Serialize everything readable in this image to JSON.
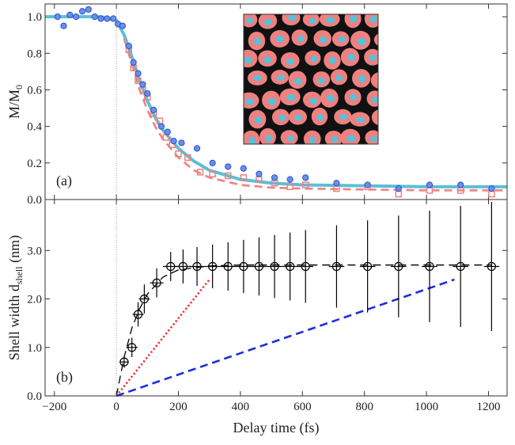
{
  "chart_data": [
    {
      "type": "line",
      "ylabel_main": "M/M",
      "ylabel_sub": "0",
      "panel_label": "(a)",
      "ylim": [
        0,
        1.07
      ],
      "yticks": [
        {
          "value": 0,
          "label": "0.0"
        },
        {
          "value": 0.2,
          "label": "0.2"
        },
        {
          "value": 0.4,
          "label": "0.4"
        },
        {
          "value": 0.6,
          "label": "0.6"
        },
        {
          "value": 0.8,
          "label": "0.8"
        },
        {
          "value": 1,
          "label": "1.0"
        }
      ],
      "series": [
        {
          "style": "solid",
          "color": "#5bbfd6",
          "x": [
            -230,
            -100,
            -50,
            0,
            25,
            50,
            75,
            100,
            125,
            150,
            200,
            250,
            300,
            400,
            500,
            600,
            800,
            1000,
            1260
          ],
          "values": [
            1,
            1,
            1,
            0.98,
            0.9,
            0.78,
            0.65,
            0.54,
            0.45,
            0.38,
            0.28,
            0.21,
            0.16,
            0.11,
            0.09,
            0.08,
            0.075,
            0.07,
            0.07
          ]
        },
        {
          "style": "dashed",
          "color": "#f08080",
          "x": [
            25,
            50,
            75,
            100,
            125,
            150,
            200,
            250,
            300,
            400,
            500,
            600,
            800,
            1000,
            1260
          ],
          "values": [
            0.88,
            0.74,
            0.6,
            0.49,
            0.4,
            0.33,
            0.23,
            0.16,
            0.12,
            0.08,
            0.065,
            0.06,
            0.055,
            0.05,
            0.05
          ]
        },
        {
          "style": "square",
          "color": "#f08080",
          "x": [
            40,
            55,
            70,
            85,
            100,
            120,
            140,
            160,
            180,
            200,
            230,
            270,
            310,
            360,
            410,
            460,
            510,
            560,
            610,
            710,
            810,
            910,
            1010,
            1110,
            1210
          ],
          "values": [
            0.82,
            0.72,
            0.65,
            0.6,
            0.56,
            0.47,
            0.43,
            0.34,
            0.3,
            0.25,
            0.23,
            0.15,
            0.14,
            0.13,
            0.12,
            0.11,
            0.09,
            0.07,
            0.08,
            0.06,
            0.07,
            0.03,
            0.05,
            0.05,
            0.03
          ]
        },
        {
          "style": "circle",
          "color": "#6a8fe8",
          "x": [
            -190,
            -170,
            -150,
            -130,
            -110,
            -90,
            -70,
            -50,
            -30,
            -10,
            5,
            20,
            40,
            55,
            70,
            85,
            100,
            120,
            145,
            165,
            185,
            210,
            260,
            310,
            360,
            410,
            460,
            510,
            560,
            610,
            710,
            810,
            910,
            1010,
            1110,
            1210
          ],
          "values": [
            1,
            0.95,
            1.01,
            1,
            1.03,
            1.04,
            1,
            0.99,
            0.99,
            0.99,
            0.96,
            0.95,
            0.84,
            0.75,
            0.69,
            0.63,
            0.58,
            0.49,
            0.4,
            0.37,
            0.32,
            0.31,
            0.28,
            0.2,
            0.18,
            0.17,
            0.14,
            0.12,
            0.11,
            0.12,
            0.09,
            0.08,
            0.06,
            0.08,
            0.08,
            0.06
          ]
        }
      ]
    },
    {
      "type": "line",
      "ylabel_main": "Shell width d",
      "ylabel_sub": "shell",
      "ylabel_unit": " (nm)",
      "panel_label": "(b)",
      "xlabel": "Delay time (fs)",
      "xlim": [
        -230,
        1260
      ],
      "xticks": [
        {
          "value": -200,
          "label": "−200"
        },
        0,
        200,
        400,
        600,
        800,
        1000,
        1200
      ],
      "ylim": [
        0,
        4.05
      ],
      "yticks": [
        {
          "value": 0,
          "label": "0.0"
        },
        {
          "value": 1,
          "label": "1.0"
        },
        {
          "value": 2,
          "label": "2.0"
        },
        {
          "value": 3,
          "label": "3.0"
        }
      ],
      "series": [
        {
          "style": "dashed",
          "color": "#000000",
          "x": [
            0,
            25,
            50,
            75,
            100,
            150,
            200,
            300,
            400,
            1210
          ],
          "values": [
            0,
            0.8,
            1.4,
            1.8,
            2.1,
            2.45,
            2.6,
            2.68,
            2.7,
            2.7
          ]
        },
        {
          "style": "dotted",
          "color": "#ee2222",
          "x": [
            0,
            300
          ],
          "values": [
            0,
            2.4
          ]
        },
        {
          "style": "dashed",
          "color": "#1a2ee0",
          "x": [
            0,
            1090
          ],
          "values": [
            0,
            2.4
          ]
        },
        {
          "style": "errorbar",
          "color": "#000000",
          "x": [
            25,
            50,
            70,
            90,
            130,
            175,
            215,
            260,
            310,
            360,
            410,
            460,
            510,
            560,
            610,
            710,
            810,
            910,
            1010,
            1110,
            1210
          ],
          "values": [
            0.7,
            1,
            1.68,
            2,
            2.33,
            2.67,
            2.67,
            2.67,
            2.67,
            2.67,
            2.67,
            2.67,
            2.67,
            2.67,
            2.67,
            2.67,
            2.67,
            2.67,
            2.67,
            2.67,
            2.67
          ],
          "xerr": [
            15,
            18,
            18,
            18,
            22,
            25,
            25,
            25,
            25,
            25,
            25,
            25,
            25,
            25,
            25,
            25,
            25,
            25,
            25,
            25,
            25
          ],
          "yerr": [
            0.12,
            0.2,
            0.25,
            0.3,
            0.3,
            0.3,
            0.35,
            0.4,
            0.45,
            0.5,
            0.55,
            0.6,
            0.65,
            0.7,
            0.75,
            0.85,
            0.95,
            1.05,
            1.15,
            1.25,
            1.33
          ]
        }
      ]
    }
  ]
}
